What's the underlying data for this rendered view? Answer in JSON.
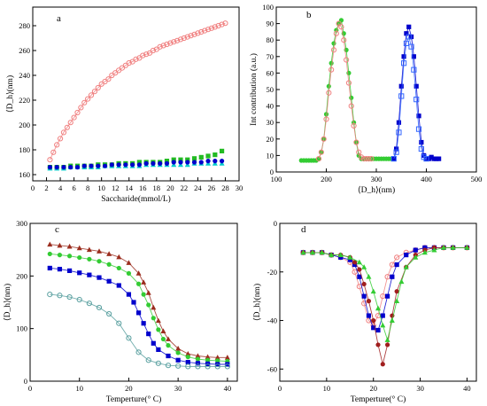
{
  "chart_data": [
    {
      "panel": "a",
      "type": "scatter",
      "xlabel": "Saccharide(mmol/L)",
      "ylabel": "⟨D_h⟩(nm)",
      "xlim": [
        0,
        30
      ],
      "ylim": [
        155,
        295
      ],
      "xticks": [
        "0",
        "2",
        "4",
        "6",
        "8",
        "10",
        "12",
        "14",
        "16",
        "18",
        "20",
        "22",
        "24",
        "26",
        "28",
        "30"
      ],
      "yticks": [
        "160",
        "180",
        "200",
        "220",
        "240",
        "260",
        "280"
      ],
      "series": [
        {
          "marker": "open-circle",
          "color": "#f08080",
          "line": true,
          "x": [
            2.5,
            3,
            3.5,
            4,
            4.5,
            5,
            5.5,
            6,
            6.5,
            7,
            7.5,
            8,
            8.5,
            9,
            9.5,
            10,
            10.5,
            11,
            11.5,
            12,
            12.5,
            13,
            13.5,
            14,
            14.5,
            15,
            15.5,
            16,
            16.5,
            17,
            17.5,
            18,
            18.5,
            19,
            19.5,
            20,
            20.5,
            21,
            21.5,
            22,
            22.5,
            23,
            23.5,
            24,
            24.5,
            25,
            25.5,
            26,
            26.5,
            27,
            27.5,
            28
          ],
          "values": [
            172,
            178,
            184,
            189,
            194,
            198,
            202,
            206,
            210,
            214,
            218,
            221,
            224,
            227,
            230,
            233,
            235,
            237,
            240,
            242,
            244,
            246,
            248,
            250,
            251,
            253,
            254,
            256,
            257,
            258,
            260,
            261,
            263,
            264,
            265,
            266,
            267,
            268,
            269,
            270,
            271,
            272,
            273,
            274,
            275,
            276,
            277,
            278,
            279,
            280,
            281,
            282
          ]
        },
        {
          "marker": "square",
          "color": "#22bb22",
          "line": false,
          "x": [
            2.5,
            3.5,
            4.5,
            5.5,
            6.5,
            7.5,
            8.5,
            9.5,
            10.5,
            11.5,
            12.5,
            13.5,
            14.5,
            15.5,
            16.5,
            17.5,
            18.5,
            19.5,
            20.5,
            21.5,
            22.5,
            23.5,
            24.5,
            25.5,
            26.5,
            27.5
          ],
          "values": [
            166,
            166,
            166,
            167,
            167,
            167,
            167,
            168,
            168,
            168,
            169,
            169,
            169,
            170,
            170,
            170,
            170,
            171,
            172,
            172,
            172,
            173,
            174,
            175,
            176,
            179
          ]
        },
        {
          "marker": "triangle",
          "color": "#00cccc",
          "line": false,
          "x": [
            2.5,
            3.5,
            4.5,
            5.5,
            6.5,
            7.5,
            8.5,
            9.5,
            10.5,
            11.5,
            12.5,
            13.5,
            14.5,
            15.5,
            16.5,
            17.5,
            18.5,
            19.5,
            20.5,
            21.5,
            22.5,
            23.5,
            24.5,
            25.5,
            26.5,
            27.5
          ],
          "values": [
            165,
            165,
            165,
            166,
            166,
            166,
            166,
            166,
            167,
            167,
            167,
            167,
            167,
            167,
            168,
            168,
            168,
            168,
            168,
            168,
            168,
            169,
            169,
            169,
            169,
            169
          ]
        },
        {
          "marker": "circle",
          "color": "#0000cc",
          "line": false,
          "x": [
            2.5,
            3.5,
            4.5,
            5.5,
            6.5,
            7.5,
            8.5,
            9.5,
            10.5,
            11.5,
            12.5,
            13.5,
            14.5,
            15.5,
            16.5,
            17.5,
            18.5,
            19.5,
            20.5,
            21.5,
            22.5,
            23.5,
            24.5,
            25.5,
            26.5,
            27.5
          ],
          "values": [
            166,
            166,
            166,
            166,
            166,
            167,
            167,
            167,
            167,
            168,
            168,
            168,
            168,
            168,
            169,
            169,
            169,
            169,
            170,
            170,
            170,
            170,
            170,
            171,
            171,
            171
          ]
        }
      ]
    },
    {
      "panel": "b",
      "type": "scatter",
      "xlabel": "⟨D_h⟩(nm)",
      "ylabel": "Int contribution (a.u.)",
      "xlim": [
        100,
        500
      ],
      "ylim": [
        0,
        100
      ],
      "xticks": [
        "100",
        "200",
        "300",
        "400",
        "500"
      ],
      "yticks": [
        "0",
        "10",
        "20",
        "30",
        "40",
        "50",
        "60",
        "70",
        "80",
        "90",
        "100"
      ],
      "series": [
        {
          "marker": "circle",
          "color": "#33cc33",
          "line": true,
          "x": [
            150,
            155,
            160,
            165,
            170,
            175,
            180,
            185,
            190,
            195,
            200,
            205,
            210,
            215,
            220,
            225,
            230,
            235,
            240,
            245,
            250,
            255,
            260,
            265,
            270,
            275,
            280,
            285,
            290,
            295,
            300,
            305,
            310,
            315,
            320,
            325,
            330
          ],
          "values": [
            7,
            7,
            7,
            7,
            7,
            7,
            7,
            8,
            12,
            20,
            35,
            52,
            66,
            78,
            86,
            90,
            92,
            84,
            74,
            60,
            45,
            30,
            18,
            10,
            8,
            8,
            8,
            8,
            8,
            8,
            8,
            8,
            8,
            8,
            8,
            8,
            8
          ]
        },
        {
          "marker": "open-circle",
          "color": "#f08080",
          "line": true,
          "x": [
            185,
            190,
            195,
            200,
            205,
            210,
            215,
            220,
            225,
            230,
            235,
            240,
            245,
            250,
            255,
            260,
            265,
            270,
            275,
            280,
            285,
            290
          ],
          "values": [
            8,
            12,
            20,
            32,
            48,
            62,
            74,
            84,
            90,
            88,
            80,
            68,
            54,
            40,
            28,
            18,
            12,
            9,
            8,
            8,
            8,
            8
          ]
        },
        {
          "marker": "square",
          "color": "#0000cc",
          "line": true,
          "x": [
            335,
            340,
            345,
            350,
            355,
            360,
            365,
            370,
            375,
            380,
            385,
            390,
            395,
            400,
            405,
            410,
            415,
            420,
            425
          ],
          "values": [
            8,
            14,
            30,
            52,
            70,
            84,
            88,
            82,
            70,
            52,
            34,
            18,
            10,
            8,
            8,
            9,
            8,
            8,
            8
          ]
        },
        {
          "marker": "open-square",
          "color": "#3366ff",
          "line": true,
          "x": [
            335,
            340,
            345,
            350,
            355,
            360,
            365,
            370,
            375,
            380,
            385,
            390,
            395,
            400
          ],
          "values": [
            8,
            12,
            24,
            46,
            66,
            78,
            82,
            76,
            62,
            44,
            26,
            14,
            9,
            8
          ]
        }
      ]
    },
    {
      "panel": "c",
      "type": "line",
      "xlabel": "Temperture(° C)",
      "ylabel": "⟨D_h⟩(nm)",
      "xlim": [
        0,
        42
      ],
      "ylim": [
        0,
        300
      ],
      "xticks": [
        "0",
        "10",
        "20",
        "30",
        "40"
      ],
      "yticks": [
        "0",
        "100",
        "200",
        "300"
      ],
      "series": [
        {
          "marker": "triangle",
          "color": "#9b2d1e",
          "x": [
            4,
            6,
            8,
            10,
            12,
            14,
            16,
            18,
            20,
            22,
            23,
            24,
            25,
            26,
            27,
            28,
            30,
            32,
            34,
            36,
            38,
            40
          ],
          "values": [
            260,
            258,
            256,
            253,
            250,
            247,
            242,
            236,
            225,
            205,
            188,
            168,
            140,
            115,
            95,
            80,
            62,
            52,
            48,
            46,
            45,
            45
          ]
        },
        {
          "marker": "circle",
          "color": "#33cc33",
          "x": [
            4,
            6,
            8,
            10,
            12,
            14,
            16,
            18,
            20,
            22,
            23,
            24,
            25,
            26,
            27,
            28,
            30,
            32,
            34,
            36,
            38,
            40
          ],
          "values": [
            242,
            240,
            238,
            235,
            232,
            228,
            222,
            215,
            205,
            185,
            165,
            145,
            120,
            98,
            80,
            68,
            54,
            46,
            42,
            40,
            39,
            38
          ]
        },
        {
          "marker": "square",
          "color": "#0000cc",
          "x": [
            4,
            6,
            8,
            10,
            12,
            14,
            16,
            18,
            20,
            21,
            22,
            23,
            24,
            25,
            26,
            28,
            30,
            32,
            34,
            36,
            38,
            40
          ],
          "values": [
            215,
            213,
            210,
            206,
            202,
            197,
            190,
            182,
            165,
            150,
            130,
            110,
            90,
            72,
            60,
            48,
            40,
            36,
            34,
            33,
            32,
            32
          ]
        },
        {
          "marker": "open-circle",
          "color": "#5aa0a0",
          "x": [
            4,
            6,
            8,
            10,
            12,
            14,
            16,
            18,
            20,
            22,
            24,
            26,
            28,
            30,
            32,
            34,
            36,
            38,
            40
          ],
          "values": [
            165,
            163,
            160,
            155,
            148,
            140,
            128,
            110,
            82,
            55,
            40,
            34,
            30,
            29,
            28,
            28,
            28,
            28,
            28
          ]
        }
      ]
    },
    {
      "panel": "d",
      "type": "line",
      "xlabel": "Temperture(° C)",
      "ylabel": "⟨D_h⟩(nm)",
      "xlim": [
        0,
        42
      ],
      "ylim": [
        -65,
        0
      ],
      "xticks": [
        "0",
        "10",
        "20",
        "30",
        "40"
      ],
      "yticks": [
        "-60",
        "-40",
        "-20",
        "0"
      ],
      "series": [
        {
          "marker": "open-circle",
          "color": "#f08080",
          "x": [
            5,
            7,
            9,
            11,
            13,
            15,
            16,
            17,
            18,
            19,
            20,
            21,
            22,
            23,
            24,
            25,
            27,
            29,
            31,
            33,
            35,
            37,
            40
          ],
          "values": [
            -12,
            -12,
            -12,
            -13,
            -14,
            -16,
            -20,
            -26,
            -33,
            -40,
            -42,
            -38,
            -30,
            -22,
            -17,
            -14,
            -12,
            -11,
            -10,
            -10,
            -10,
            -10,
            -10
          ]
        },
        {
          "marker": "square",
          "color": "#0000cc",
          "x": [
            5,
            7,
            9,
            11,
            13,
            15,
            16,
            17,
            18,
            19,
            20,
            21,
            22,
            23,
            24,
            25,
            27,
            29,
            31,
            33,
            35,
            37,
            40
          ],
          "values": [
            -12,
            -12,
            -12,
            -13,
            -14,
            -15,
            -17,
            -22,
            -30,
            -38,
            -43,
            -44,
            -38,
            -30,
            -22,
            -17,
            -13,
            -11,
            -10,
            -10,
            -10,
            -10,
            -10
          ]
        },
        {
          "marker": "circle",
          "color": "#a01e1e",
          "x": [
            5,
            7,
            9,
            11,
            13,
            15,
            16,
            17,
            18,
            19,
            20,
            21,
            22,
            23,
            24,
            25,
            27,
            29,
            31,
            33,
            35,
            37,
            40
          ],
          "values": [
            -12,
            -12,
            -12,
            -13,
            -13,
            -14,
            -16,
            -19,
            -25,
            -32,
            -40,
            -50,
            -58,
            -50,
            -38,
            -28,
            -18,
            -13,
            -11,
            -10,
            -10,
            -10,
            -10
          ]
        },
        {
          "marker": "triangle",
          "color": "#33cc33",
          "x": [
            5,
            7,
            9,
            11,
            13,
            15,
            17,
            18,
            19,
            20,
            21,
            22,
            23,
            24,
            25,
            26,
            27,
            29,
            31,
            33,
            35,
            37,
            40
          ],
          "values": [
            -12,
            -12,
            -12,
            -13,
            -13,
            -14,
            -16,
            -18,
            -22,
            -28,
            -35,
            -42,
            -48,
            -40,
            -32,
            -24,
            -18,
            -14,
            -12,
            -11,
            -10,
            -10,
            -10
          ]
        }
      ]
    }
  ]
}
